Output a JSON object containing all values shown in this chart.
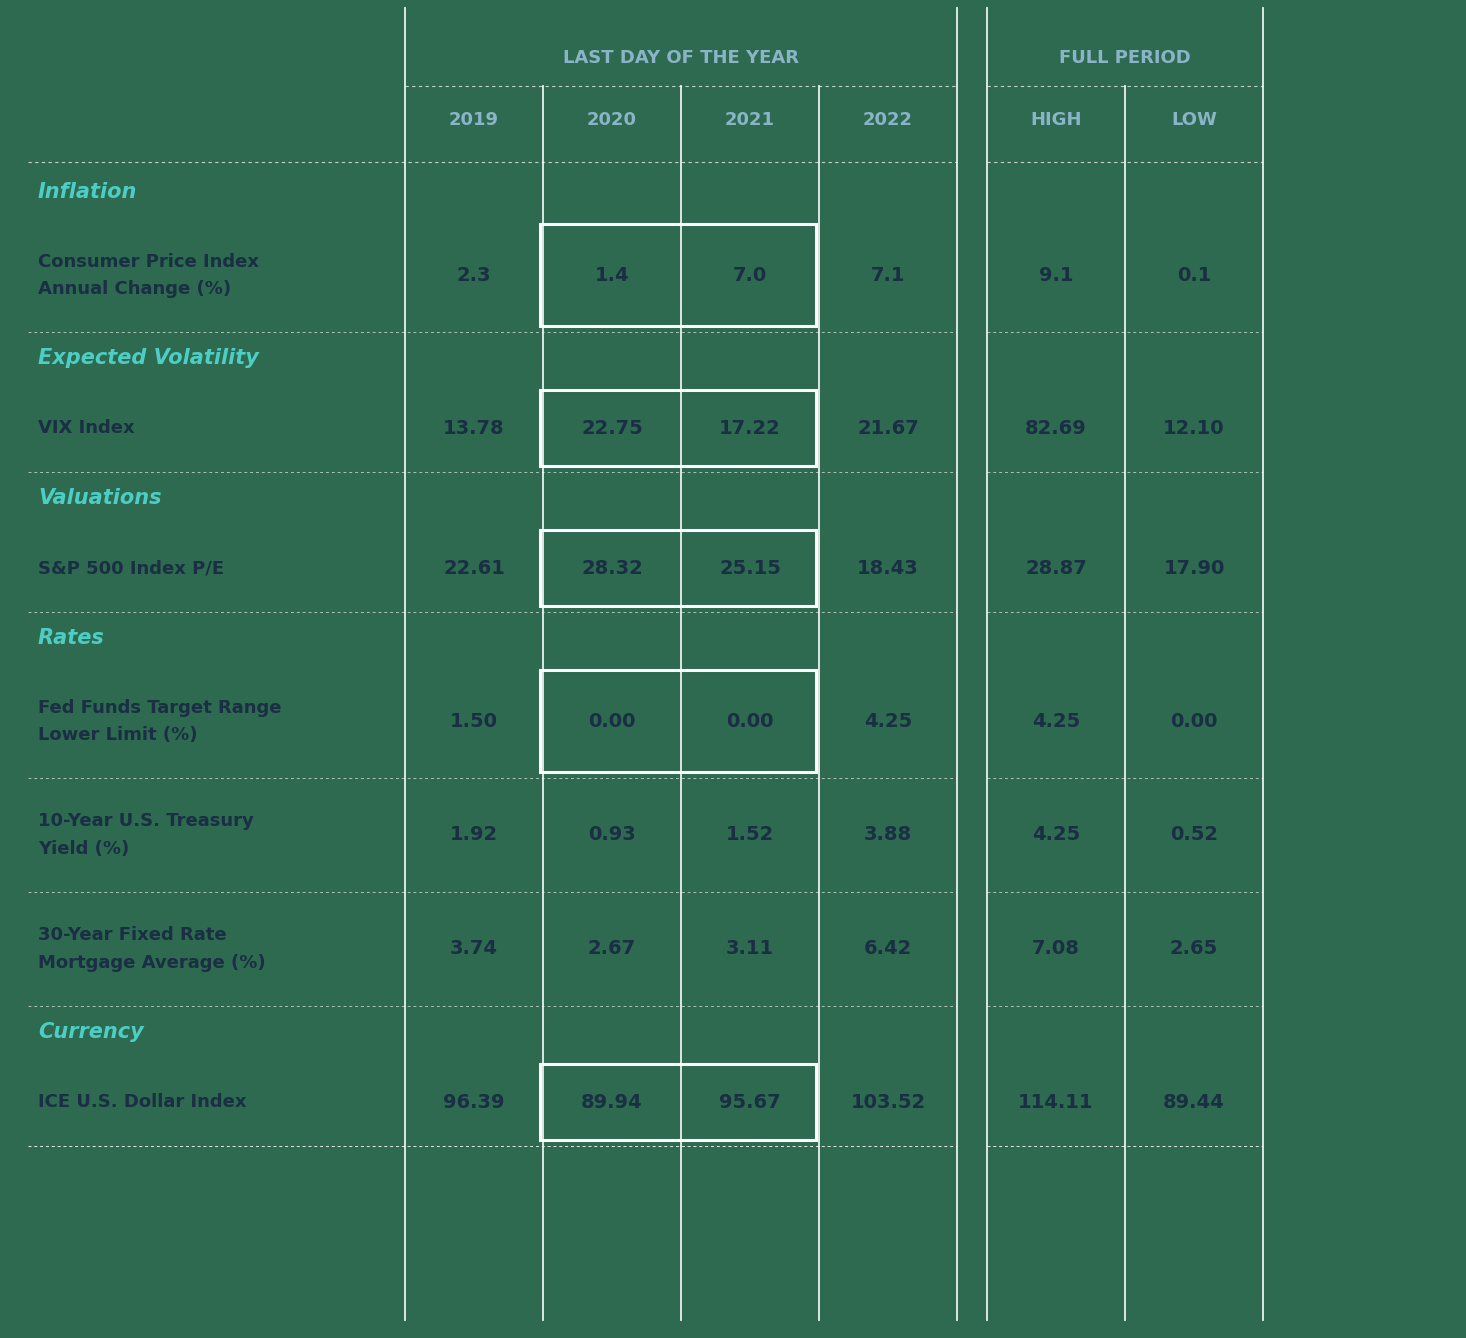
{
  "bg_color": "#2d6a4f",
  "col_header_color": "#8ab4c8",
  "category_color": "#4ecdc4",
  "text_color_dark": "#1a2e44",
  "number_color": "#1a2e44",
  "header_top": "LAST DAY OF THE YEAR",
  "header_right": "FULL PERIOD",
  "categories": [
    {
      "name": "Inflation",
      "type": "category"
    },
    {
      "label": "Consumer Price Index\nAnnual Change (%)",
      "values": [
        "2.3",
        "1.4",
        "7.0",
        "7.1"
      ],
      "period": [
        "9.1",
        "0.1"
      ],
      "highlight": true,
      "type": "row"
    },
    {
      "name": "Expected Volatility",
      "type": "category"
    },
    {
      "label": "VIX Index",
      "values": [
        "13.78",
        "22.75",
        "17.22",
        "21.67"
      ],
      "period": [
        "82.69",
        "12.10"
      ],
      "highlight": true,
      "type": "row"
    },
    {
      "name": "Valuations",
      "type": "category"
    },
    {
      "label": "S&P 500 Index P/E",
      "values": [
        "22.61",
        "28.32",
        "25.15",
        "18.43"
      ],
      "period": [
        "28.87",
        "17.90"
      ],
      "highlight": true,
      "type": "row"
    },
    {
      "name": "Rates",
      "type": "category"
    },
    {
      "label": "Fed Funds Target Range\nLower Limit (%)",
      "values": [
        "1.50",
        "0.00",
        "0.00",
        "4.25"
      ],
      "period": [
        "4.25",
        "0.00"
      ],
      "highlight": true,
      "type": "row"
    },
    {
      "label": "10-Year U.S. Treasury\nYield (%)",
      "values": [
        "1.92",
        "0.93",
        "1.52",
        "3.88"
      ],
      "period": [
        "4.25",
        "0.52"
      ],
      "highlight": false,
      "type": "row"
    },
    {
      "label": "30-Year Fixed Rate\nMortgage Average (%)",
      "values": [
        "3.74",
        "2.67",
        "3.11",
        "6.42"
      ],
      "period": [
        "7.08",
        "2.65"
      ],
      "highlight": false,
      "type": "row"
    },
    {
      "name": "Currency",
      "type": "category"
    },
    {
      "label": "ICE U.S. Dollar Index",
      "values": [
        "96.39",
        "89.94",
        "95.67",
        "103.52"
      ],
      "period": [
        "114.11",
        "89.44"
      ],
      "highlight": true,
      "type": "row"
    }
  ]
}
